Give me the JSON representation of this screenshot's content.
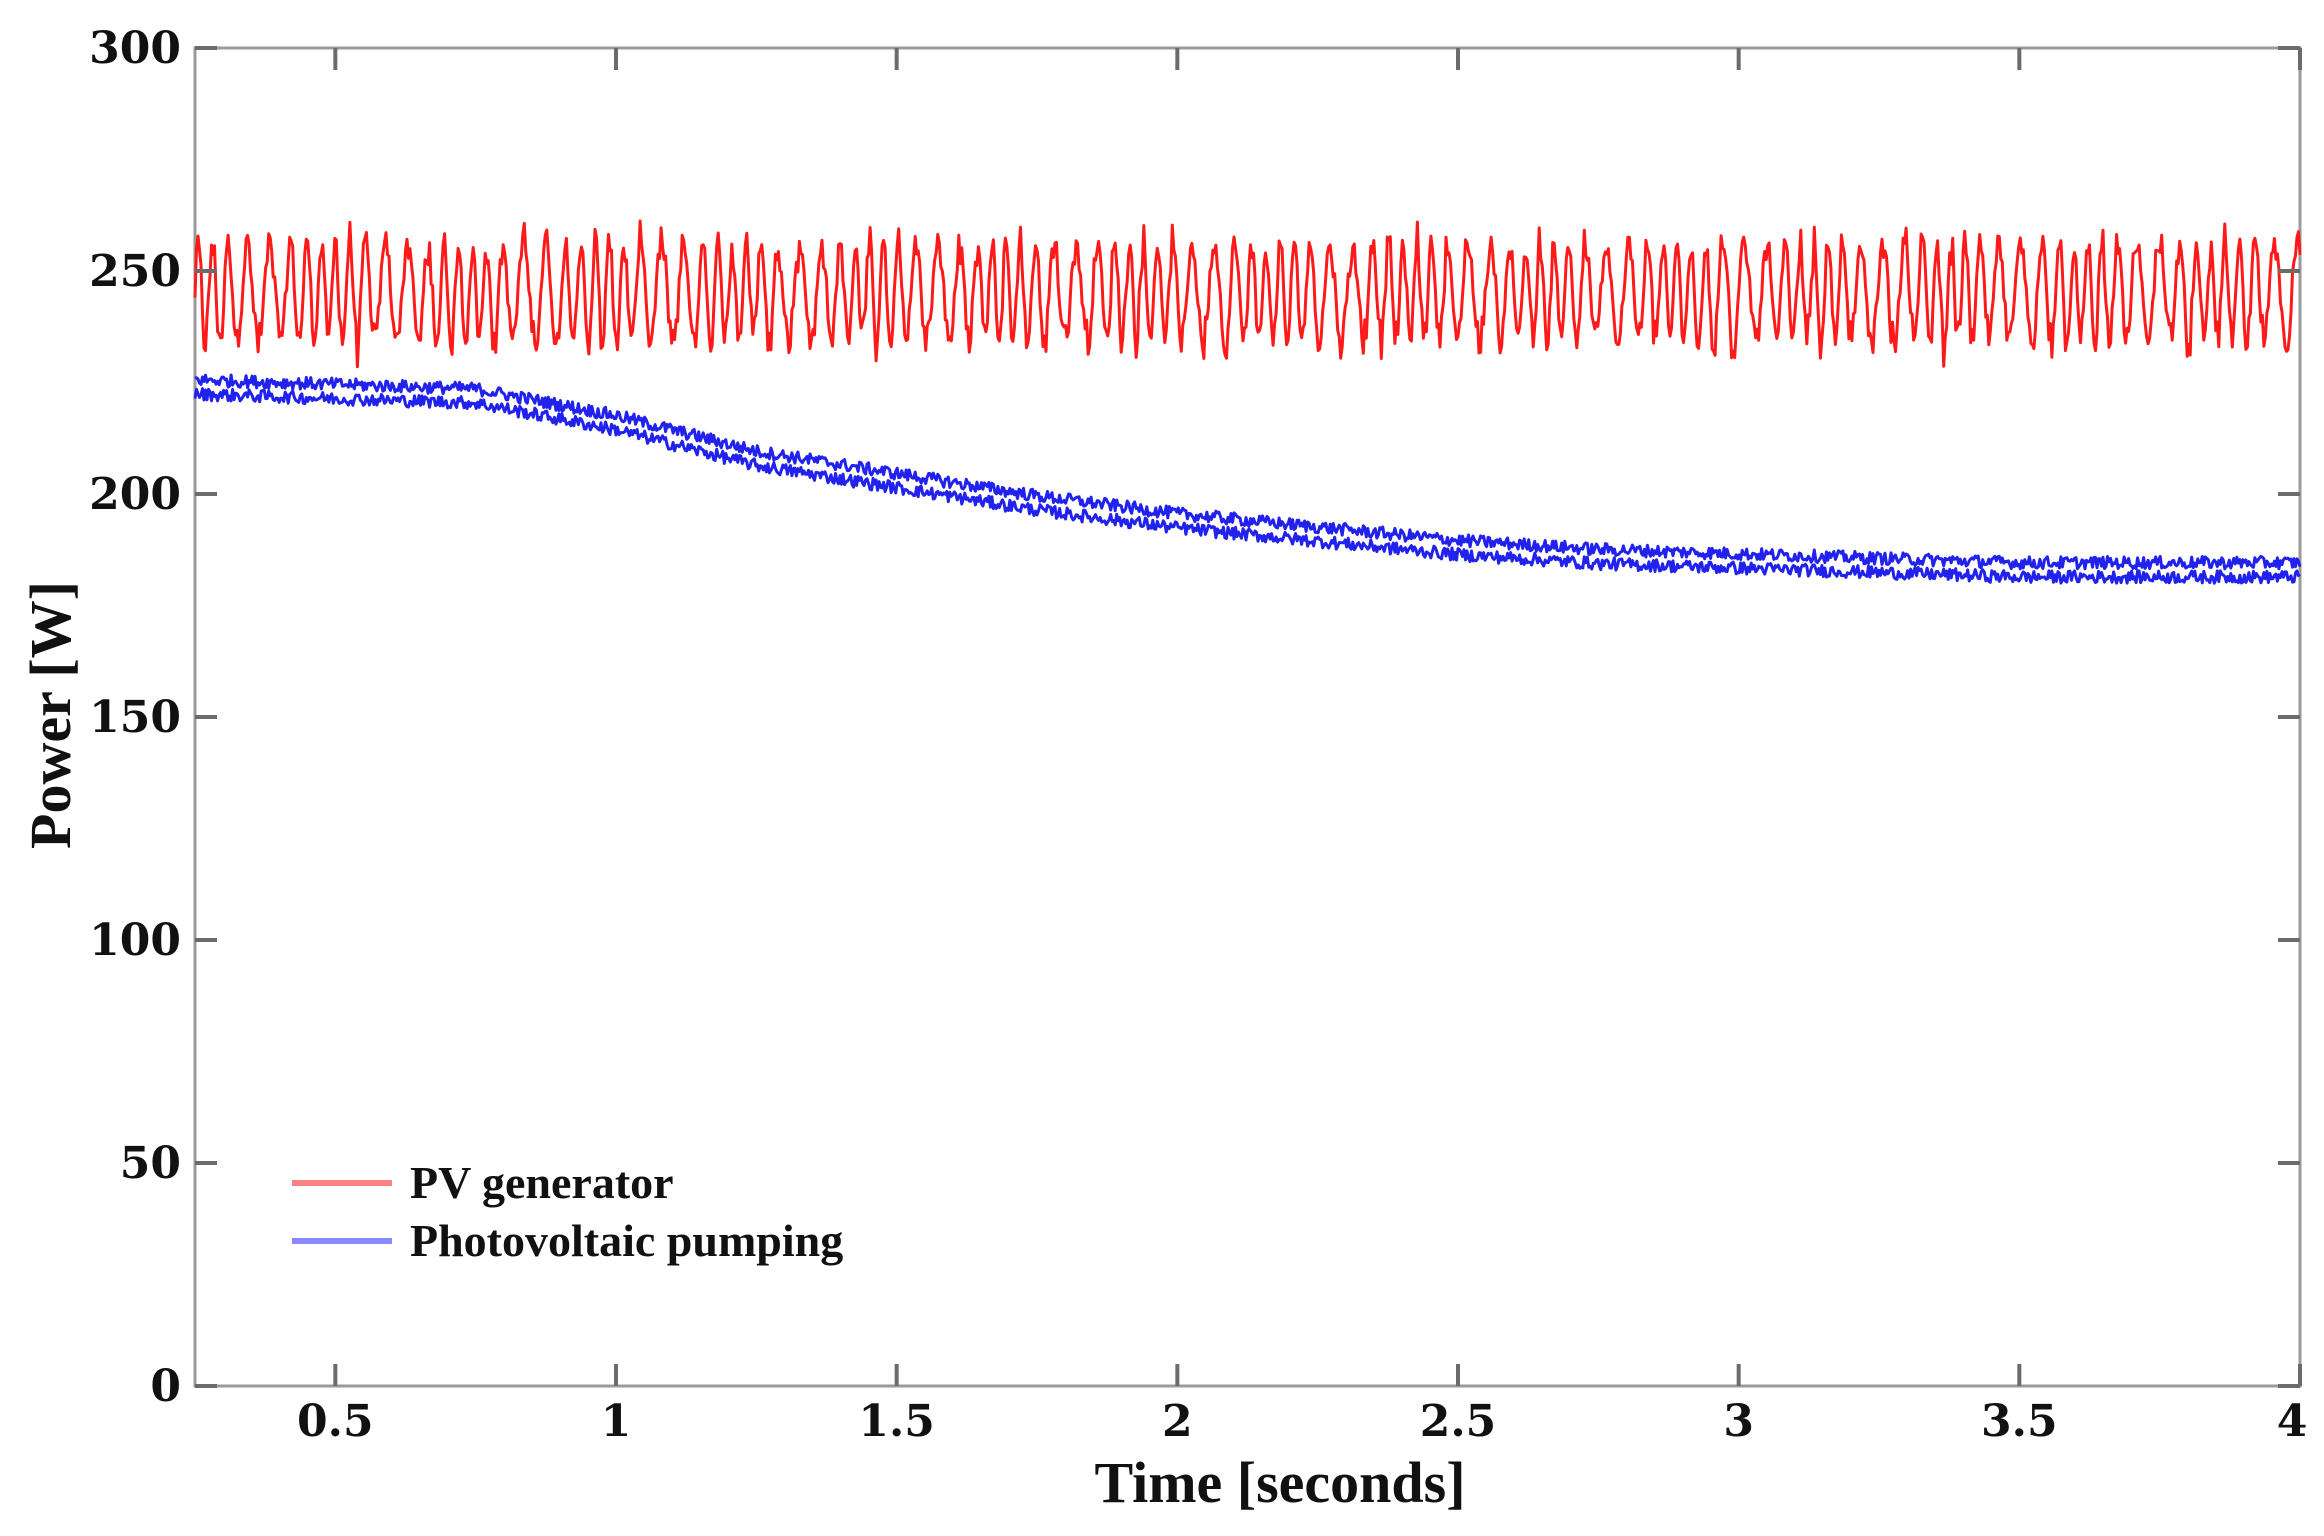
{
  "chart_data": {
    "type": "line",
    "title": "",
    "xlabel": "Time [seconds]",
    "ylabel": "Power [W]",
    "xlim": [
      0.25,
      4.0
    ],
    "ylim": [
      0,
      300
    ],
    "xticks": [
      0.5,
      1,
      1.5,
      2,
      2.5,
      3,
      3.5,
      4
    ],
    "xtick_labels": [
      "0.5",
      "1",
      "1.5",
      "2",
      "2.5",
      "3",
      "3.5",
      "4"
    ],
    "yticks": [
      0,
      50,
      100,
      150,
      200,
      250,
      300
    ],
    "ytick_labels": [
      "0",
      "50",
      "100",
      "150",
      "200",
      "250",
      "300"
    ],
    "grid": false,
    "legend_position": "bottom-left",
    "series": [
      {
        "name": "PV generator",
        "color": "#ff1a1a",
        "legend_color": "#ff8080",
        "noise": "oscillating ±15 W around mean",
        "x": [
          0.25,
          0.5,
          1.0,
          1.5,
          2.0,
          2.5,
          3.0,
          3.5,
          4.0
        ],
        "y": [
          245,
          245,
          245,
          245,
          245,
          245,
          245,
          245,
          245
        ]
      },
      {
        "name": "Photovoltaic pumping",
        "color": "#2222ee",
        "legend_color": "#8888ff",
        "noise": "small ripple ±2 W",
        "x": [
          0.25,
          0.5,
          0.75,
          1.0,
          1.25,
          1.5,
          1.75,
          2.0,
          2.25,
          2.5,
          2.75,
          3.0,
          3.25,
          3.5,
          3.75,
          4.0
        ],
        "y": [
          224,
          223,
          222,
          216,
          208,
          203,
          198,
          194,
          191,
          188,
          186,
          185,
          184,
          183,
          183,
          183
        ]
      }
    ]
  }
}
